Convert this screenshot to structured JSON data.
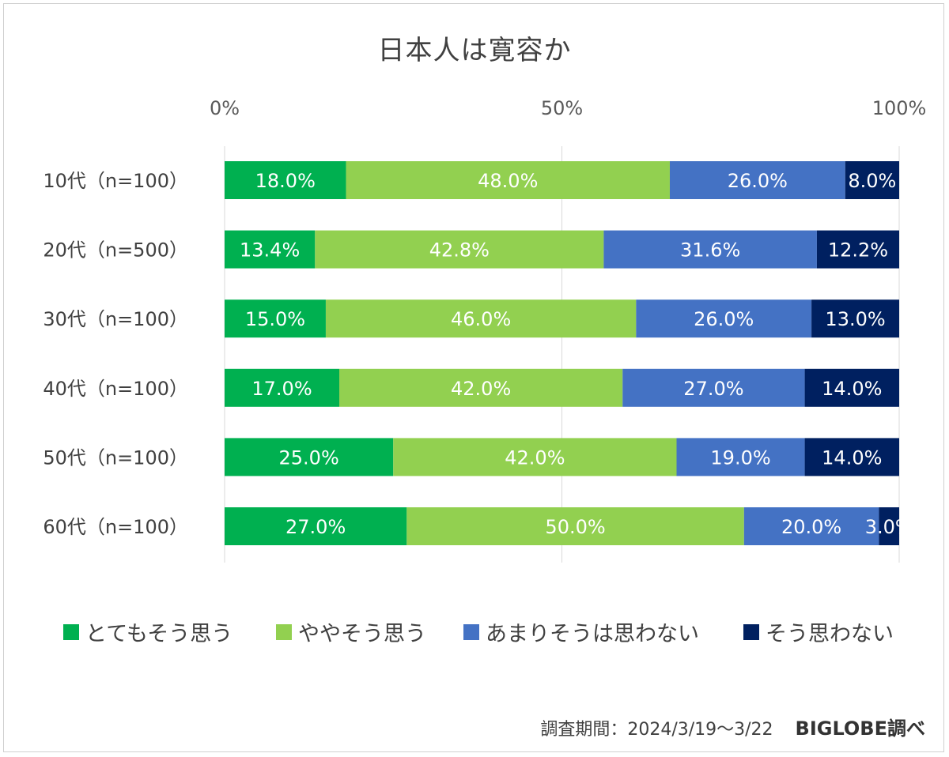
{
  "title": "日本人は寛容か",
  "legend": [
    {
      "label": "とてもそう思う",
      "color": "#00b050"
    },
    {
      "label": "ややそう思う",
      "color": "#92d050"
    },
    {
      "label": "あまりそうは思わない",
      "color": "#4472c4"
    },
    {
      "label": "そう思わない",
      "color": "#002060"
    }
  ],
  "footer": {
    "period": "調査期間：2024/3/19～3/22",
    "source": "BIGLOBE調べ"
  },
  "chart_data": {
    "type": "bar",
    "orientation": "horizontal",
    "stacked": "percent",
    "title": "日本人は寛容か",
    "categories": [
      "10代（n=100）",
      "20代（n=500）",
      "30代（n=100）",
      "40代（n=100）",
      "50代（n=100）",
      "60代（n=100）"
    ],
    "series": [
      {
        "name": "とてもそう思う",
        "color": "#00b050",
        "values": [
          18.0,
          13.4,
          15.0,
          17.0,
          25.0,
          27.0
        ],
        "labels": [
          "18.0%",
          "13.4%",
          "15.0%",
          "17.0%",
          "25.0%",
          "27.0%"
        ]
      },
      {
        "name": "ややそう思う",
        "color": "#92d050",
        "values": [
          48.0,
          42.8,
          46.0,
          42.0,
          42.0,
          50.0
        ],
        "labels": [
          "48.0%",
          "42.8%",
          "46.0%",
          "42.0%",
          "42.0%",
          "50.0%"
        ]
      },
      {
        "name": "あまりそうは思わない",
        "color": "#4472c4",
        "values": [
          26.0,
          31.6,
          26.0,
          27.0,
          19.0,
          20.0
        ],
        "labels": [
          "26.0%",
          "31.6%",
          "26.0%",
          "27.0%",
          "19.0%",
          "20.0%"
        ]
      },
      {
        "name": "そう思わない",
        "color": "#002060",
        "values": [
          8.0,
          12.2,
          13.0,
          14.0,
          14.0,
          3.0
        ],
        "labels": [
          "8.0%",
          "12.2%",
          "13.0%",
          "14.0%",
          "14.0%",
          "3.0%"
        ]
      }
    ],
    "xaxis": {
      "ticks": [
        "0%",
        "50%",
        "100%"
      ],
      "tick_values": [
        0,
        50,
        100
      ],
      "position": "top"
    },
    "xlim": [
      0,
      100
    ],
    "grid": true,
    "legend_position": "bottom"
  }
}
